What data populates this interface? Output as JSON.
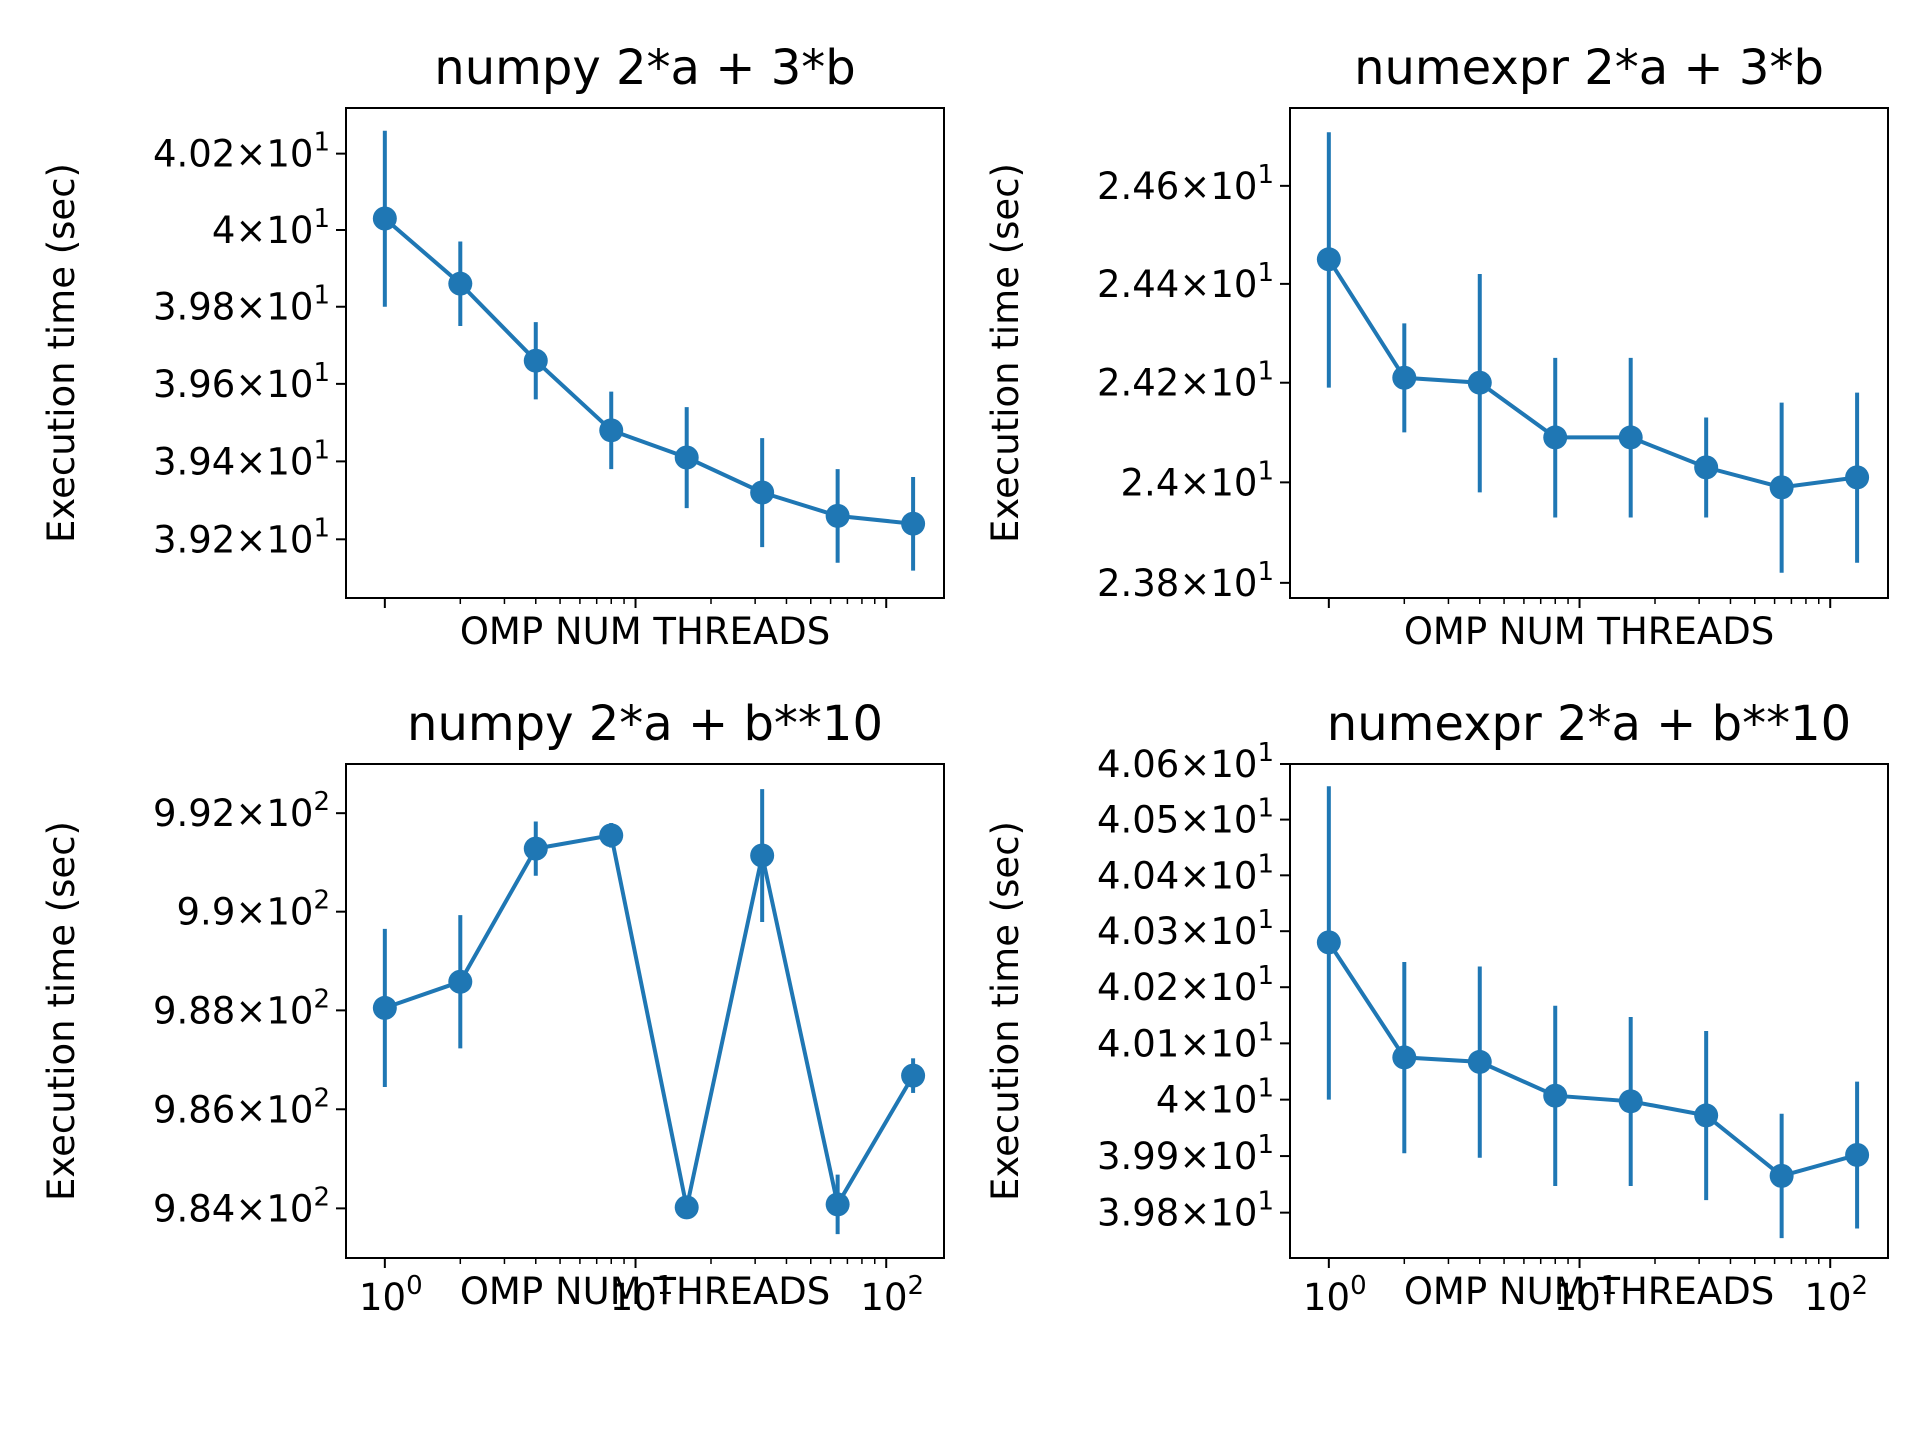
{
  "style": {
    "series_color": "#1f77b4",
    "axis_color": "#000000"
  },
  "chart_data": [
    {
      "type": "line",
      "title": "numpy 2*a + 3*b",
      "xlabel": "OMP NUM THREADS",
      "ylabel": "Execution time (sec)",
      "x_scale": "log",
      "y_scale": "log",
      "x": [
        1,
        2,
        4,
        8,
        16,
        32,
        64,
        128
      ],
      "xlim": [
        0.7,
        170
      ],
      "ylim": [
        39.05,
        40.32
      ],
      "x_ticks": [],
      "y_ticks": [
        {
          "value": 39.2,
          "mant": "3.92",
          "exp": "1"
        },
        {
          "value": 39.4,
          "mant": "3.94",
          "exp": "1"
        },
        {
          "value": 39.6,
          "mant": "3.96",
          "exp": "1"
        },
        {
          "value": 39.8,
          "mant": "3.98",
          "exp": "1"
        },
        {
          "value": 40.0,
          "mant": "4",
          "exp": "1"
        },
        {
          "value": 40.2,
          "mant": "4.02",
          "exp": "1"
        }
      ],
      "series": [
        {
          "values": [
            40.03,
            39.86,
            39.66,
            39.48,
            39.41,
            39.32,
            39.26,
            39.24
          ],
          "errors": [
            0.23,
            0.11,
            0.1,
            0.1,
            0.13,
            0.14,
            0.12,
            0.12
          ]
        }
      ]
    },
    {
      "type": "line",
      "title": "numexpr 2*a + 3*b",
      "xlabel": "OMP NUM THREADS",
      "ylabel": "Execution time (sec)",
      "x_scale": "log",
      "y_scale": "log",
      "x": [
        1,
        2,
        4,
        8,
        16,
        32,
        64,
        128
      ],
      "xlim": [
        0.7,
        170
      ],
      "ylim": [
        23.77,
        24.76
      ],
      "x_ticks": [],
      "y_ticks": [
        {
          "value": 23.8,
          "mant": "2.38",
          "exp": "1"
        },
        {
          "value": 24.0,
          "mant": "2.4",
          "exp": "1"
        },
        {
          "value": 24.2,
          "mant": "2.42",
          "exp": "1"
        },
        {
          "value": 24.4,
          "mant": "2.44",
          "exp": "1"
        },
        {
          "value": 24.6,
          "mant": "2.46",
          "exp": "1"
        }
      ],
      "series": [
        {
          "values": [
            24.45,
            24.21,
            24.2,
            24.09,
            24.09,
            24.03,
            23.99,
            24.01
          ],
          "errors": [
            0.26,
            0.11,
            0.22,
            0.16,
            0.16,
            0.1,
            0.17,
            0.17
          ]
        }
      ]
    },
    {
      "type": "line",
      "title": "numpy 2*a + b**10",
      "xlabel": "OMP NUM THREADS",
      "ylabel": "Execution time (sec)",
      "x_scale": "log",
      "y_scale": "log",
      "x": [
        1,
        2,
        4,
        8,
        16,
        32,
        64,
        128
      ],
      "xlim": [
        0.7,
        170
      ],
      "ylim": [
        983.0,
        993.0
      ],
      "x_ticks": [
        {
          "value": 1,
          "mant": "10",
          "exp": "0"
        },
        {
          "value": 10,
          "mant": "10",
          "exp": "1"
        },
        {
          "value": 100,
          "mant": "10",
          "exp": "2"
        }
      ],
      "y_ticks": [
        {
          "value": 984,
          "mant": "9.84",
          "exp": "2"
        },
        {
          "value": 986,
          "mant": "9.86",
          "exp": "2"
        },
        {
          "value": 988,
          "mant": "9.88",
          "exp": "2"
        },
        {
          "value": 990,
          "mant": "9.9",
          "exp": "2"
        },
        {
          "value": 992,
          "mant": "9.92",
          "exp": "2"
        }
      ],
      "series": [
        {
          "values": [
            988.05,
            988.58,
            991.28,
            991.55,
            984.02,
            991.14,
            984.08,
            986.68
          ],
          "errors": [
            1.6,
            1.35,
            0.55,
            0.25,
            0.1,
            1.35,
            0.6,
            0.35
          ]
        }
      ]
    },
    {
      "type": "line",
      "title": "numexpr 2*a + b**10",
      "xlabel": "OMP NUM THREADS",
      "ylabel": "Execution time (sec)",
      "x_scale": "log",
      "y_scale": "log",
      "x": [
        1,
        2,
        4,
        8,
        16,
        32,
        64,
        128
      ],
      "xlim": [
        0.7,
        170
      ],
      "ylim": [
        39.72,
        40.6
      ],
      "x_ticks": [
        {
          "value": 1,
          "mant": "10",
          "exp": "0"
        },
        {
          "value": 10,
          "mant": "10",
          "exp": "1"
        },
        {
          "value": 100,
          "mant": "10",
          "exp": "2"
        }
      ],
      "y_ticks": [
        {
          "value": 39.8,
          "mant": "3.98",
          "exp": "1"
        },
        {
          "value": 39.9,
          "mant": "3.99",
          "exp": "1"
        },
        {
          "value": 40.0,
          "mant": "4",
          "exp": "1"
        },
        {
          "value": 40.1,
          "mant": "4.01",
          "exp": "1"
        },
        {
          "value": 40.2,
          "mant": "4.02",
          "exp": "1"
        },
        {
          "value": 40.3,
          "mant": "4.03",
          "exp": "1"
        },
        {
          "value": 40.4,
          "mant": "4.04",
          "exp": "1"
        },
        {
          "value": 40.5,
          "mant": "4.05",
          "exp": "1"
        },
        {
          "value": 40.6,
          "mant": "4.06",
          "exp": "1"
        }
      ],
      "series": [
        {
          "values": [
            40.28,
            40.075,
            40.067,
            40.007,
            39.997,
            39.972,
            39.865,
            39.902
          ],
          "errors": [
            0.28,
            0.17,
            0.17,
            0.16,
            0.15,
            0.15,
            0.11,
            0.13
          ]
        }
      ]
    }
  ]
}
